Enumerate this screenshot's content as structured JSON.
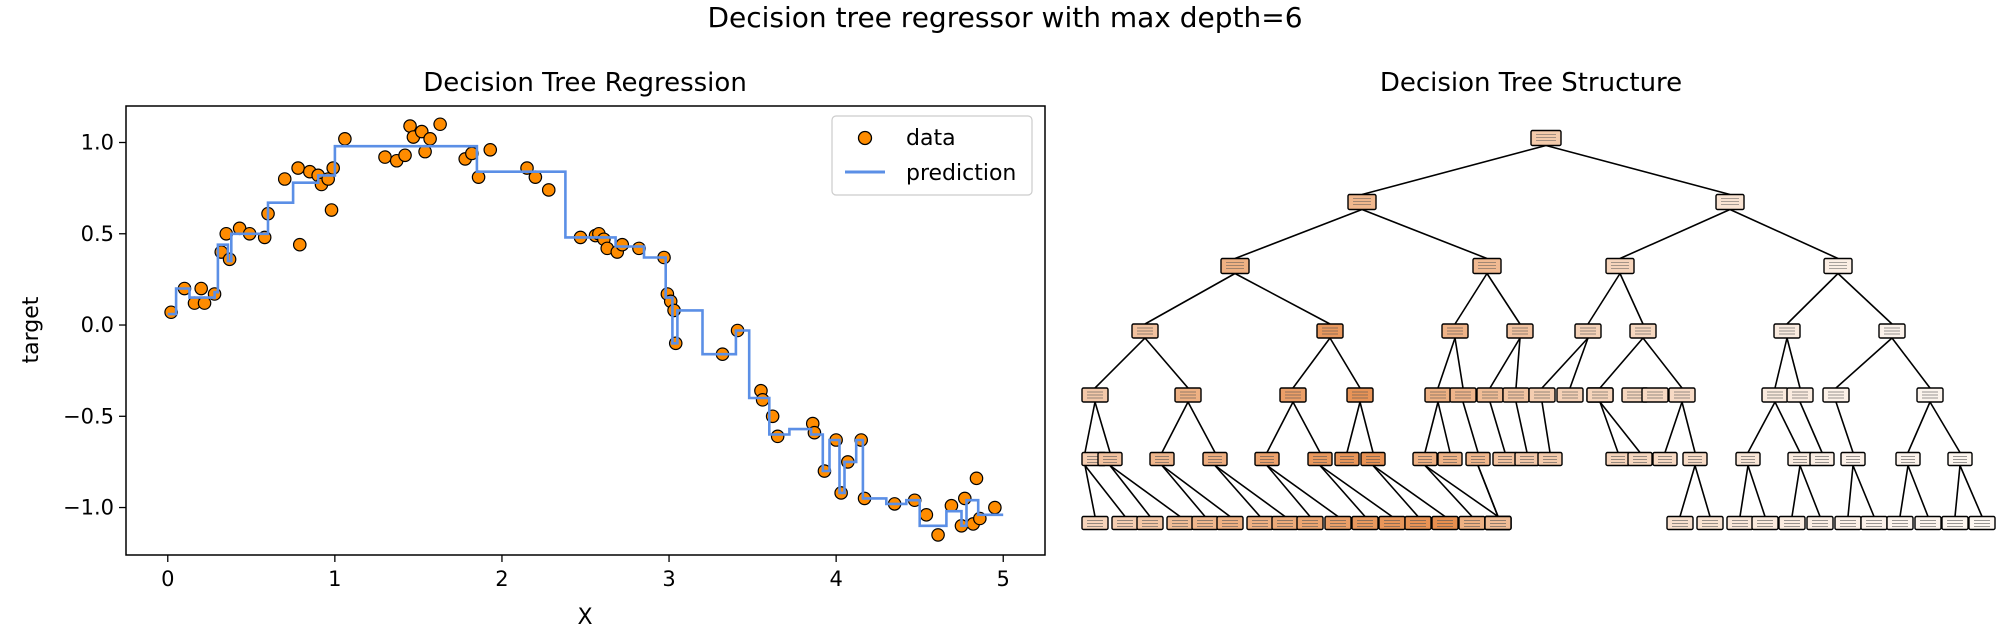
{
  "figure_title": "Decision tree regressor with max depth=6",
  "colors": {
    "data_fill": "#ff8c00",
    "data_edge": "#000000",
    "prediction": "#5b8fe6",
    "node_dark": "#e58139",
    "node_light": "#fdf8f3"
  },
  "chart_data": [
    {
      "type": "scatter",
      "title": "Decision Tree Regression",
      "xlabel": "X",
      "ylabel": "target",
      "xlim": [
        -0.25,
        5.25
      ],
      "ylim": [
        -1.26,
        1.2
      ],
      "xticks": [
        0,
        1,
        2,
        3,
        4,
        5
      ],
      "xtick_labels": [
        "0",
        "1",
        "2",
        "3",
        "4",
        "5"
      ],
      "yticks": [
        1.0,
        0.5,
        0.0,
        -0.5,
        -1.0
      ],
      "ytick_labels": [
        "1.0",
        "0.5",
        "0.0",
        "−0.5",
        "−1.0"
      ],
      "grid": false,
      "legend_position": "top-right",
      "series": [
        {
          "name": "data",
          "kind": "scatter",
          "points": [
            [
              0.02,
              0.07
            ],
            [
              0.1,
              0.2
            ],
            [
              0.16,
              0.12
            ],
            [
              0.2,
              0.2
            ],
            [
              0.22,
              0.12
            ],
            [
              0.28,
              0.17
            ],
            [
              0.32,
              0.4
            ],
            [
              0.35,
              0.5
            ],
            [
              0.37,
              0.36
            ],
            [
              0.43,
              0.53
            ],
            [
              0.49,
              0.5
            ],
            [
              0.58,
              0.48
            ],
            [
              0.6,
              0.61
            ],
            [
              0.7,
              0.8
            ],
            [
              0.78,
              0.86
            ],
            [
              0.79,
              0.44
            ],
            [
              0.85,
              0.84
            ],
            [
              0.9,
              0.82
            ],
            [
              0.92,
              0.77
            ],
            [
              0.96,
              0.8
            ],
            [
              0.98,
              0.63
            ],
            [
              0.99,
              0.86
            ],
            [
              1.06,
              1.02
            ],
            [
              1.3,
              0.92
            ],
            [
              1.37,
              0.9
            ],
            [
              1.42,
              0.93
            ],
            [
              1.45,
              1.09
            ],
            [
              1.47,
              1.03
            ],
            [
              1.52,
              1.06
            ],
            [
              1.54,
              0.95
            ],
            [
              1.57,
              1.02
            ],
            [
              1.63,
              1.1
            ],
            [
              1.78,
              0.91
            ],
            [
              1.82,
              0.94
            ],
            [
              1.86,
              0.81
            ],
            [
              1.93,
              0.96
            ],
            [
              2.15,
              0.86
            ],
            [
              2.2,
              0.81
            ],
            [
              2.28,
              0.74
            ],
            [
              2.47,
              0.48
            ],
            [
              2.56,
              0.49
            ],
            [
              2.58,
              0.5
            ],
            [
              2.61,
              0.47
            ],
            [
              2.63,
              0.42
            ],
            [
              2.69,
              0.4
            ],
            [
              2.72,
              0.44
            ],
            [
              2.82,
              0.42
            ],
            [
              2.97,
              0.37
            ],
            [
              2.99,
              0.17
            ],
            [
              3.01,
              0.13
            ],
            [
              3.03,
              0.08
            ],
            [
              3.04,
              -0.1
            ],
            [
              3.32,
              -0.16
            ],
            [
              3.41,
              -0.03
            ],
            [
              3.55,
              -0.36
            ],
            [
              3.56,
              -0.41
            ],
            [
              3.62,
              -0.5
            ],
            [
              3.65,
              -0.61
            ],
            [
              3.86,
              -0.54
            ],
            [
              3.87,
              -0.59
            ],
            [
              3.93,
              -0.8
            ],
            [
              4.0,
              -0.63
            ],
            [
              4.03,
              -0.92
            ],
            [
              4.07,
              -0.75
            ],
            [
              4.15,
              -0.63
            ],
            [
              4.17,
              -0.95
            ],
            [
              4.35,
              -0.98
            ],
            [
              4.47,
              -0.96
            ],
            [
              4.54,
              -1.04
            ],
            [
              4.61,
              -1.15
            ],
            [
              4.69,
              -0.99
            ],
            [
              4.75,
              -1.1
            ],
            [
              4.77,
              -0.95
            ],
            [
              4.82,
              -1.09
            ],
            [
              4.84,
              -0.84
            ],
            [
              4.86,
              -1.06
            ],
            [
              4.95,
              -1.0
            ]
          ]
        },
        {
          "name": "prediction",
          "kind": "step-line",
          "points": [
            [
              0.0,
              0.06
            ],
            [
              0.05,
              0.06
            ],
            [
              0.05,
              0.2
            ],
            [
              0.13,
              0.2
            ],
            [
              0.13,
              0.15
            ],
            [
              0.28,
              0.15
            ],
            [
              0.28,
              0.18
            ],
            [
              0.3,
              0.18
            ],
            [
              0.3,
              0.44
            ],
            [
              0.36,
              0.44
            ],
            [
              0.36,
              0.35
            ],
            [
              0.38,
              0.35
            ],
            [
              0.38,
              0.5
            ],
            [
              0.6,
              0.5
            ],
            [
              0.6,
              0.67
            ],
            [
              0.75,
              0.67
            ],
            [
              0.75,
              0.78
            ],
            [
              0.9,
              0.78
            ],
            [
              0.9,
              0.82
            ],
            [
              1.0,
              0.82
            ],
            [
              1.0,
              0.98
            ],
            [
              1.85,
              0.98
            ],
            [
              1.85,
              0.84
            ],
            [
              2.38,
              0.84
            ],
            [
              2.38,
              0.48
            ],
            [
              2.68,
              0.48
            ],
            [
              2.68,
              0.43
            ],
            [
              2.85,
              0.43
            ],
            [
              2.85,
              0.37
            ],
            [
              2.98,
              0.37
            ],
            [
              2.98,
              0.15
            ],
            [
              3.02,
              0.15
            ],
            [
              3.02,
              -0.1
            ],
            [
              3.05,
              -0.1
            ],
            [
              3.05,
              0.08
            ],
            [
              3.2,
              0.08
            ],
            [
              3.2,
              -0.16
            ],
            [
              3.4,
              -0.16
            ],
            [
              3.4,
              -0.03
            ],
            [
              3.48,
              -0.03
            ],
            [
              3.48,
              -0.4
            ],
            [
              3.6,
              -0.4
            ],
            [
              3.6,
              -0.6
            ],
            [
              3.72,
              -0.6
            ],
            [
              3.72,
              -0.57
            ],
            [
              3.85,
              -0.57
            ],
            [
              3.85,
              -0.6
            ],
            [
              3.92,
              -0.6
            ],
            [
              3.92,
              -0.8
            ],
            [
              3.96,
              -0.8
            ],
            [
              3.96,
              -0.63
            ],
            [
              4.02,
              -0.63
            ],
            [
              4.02,
              -0.92
            ],
            [
              4.05,
              -0.92
            ],
            [
              4.05,
              -0.75
            ],
            [
              4.12,
              -0.75
            ],
            [
              4.12,
              -0.63
            ],
            [
              4.16,
              -0.63
            ],
            [
              4.16,
              -0.95
            ],
            [
              4.3,
              -0.95
            ],
            [
              4.3,
              -0.98
            ],
            [
              4.42,
              -0.98
            ],
            [
              4.42,
              -0.96
            ],
            [
              4.5,
              -0.96
            ],
            [
              4.5,
              -1.1
            ],
            [
              4.66,
              -1.1
            ],
            [
              4.66,
              -1.02
            ],
            [
              4.75,
              -1.02
            ],
            [
              4.75,
              -1.1
            ],
            [
              4.78,
              -1.1
            ],
            [
              4.78,
              -0.96
            ],
            [
              4.85,
              -0.96
            ],
            [
              4.85,
              -1.04
            ],
            [
              5.0,
              -1.04
            ]
          ]
        }
      ]
    },
    {
      "type": "tree",
      "title": "Decision Tree Structure",
      "max_depth": 6
    }
  ]
}
